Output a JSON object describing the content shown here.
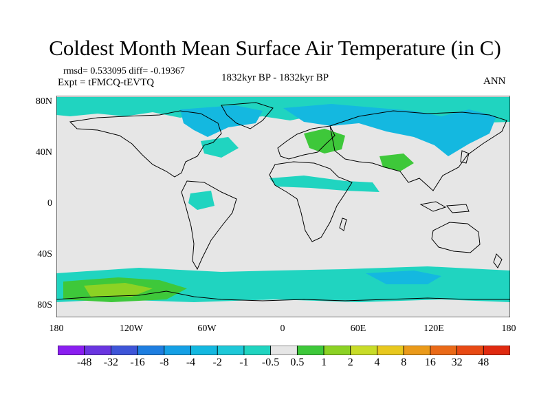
{
  "title": "Coldest Month Mean Surface Air Temperature (in C)",
  "stats": "rmsd= 0.533095 diff= -0.19367",
  "experiment": "Expt = tFMCQ-tEVTQ",
  "period": "1832kyr BP - 1832kyr BP",
  "season": "ANN",
  "lat_labels": [
    "80N",
    "40N",
    "0",
    "40S",
    "80S"
  ],
  "lon_labels": [
    "180",
    "120W",
    "60W",
    "0",
    "60E",
    "120E",
    "180"
  ],
  "colorbar": {
    "labels": [
      "-48",
      "-32",
      "-16",
      "-8",
      "-4",
      "-2",
      "-1",
      "-0.5",
      "0.5",
      "1",
      "2",
      "4",
      "8",
      "16",
      "32",
      "48"
    ],
    "colors": [
      "#8a1ef0",
      "#6a35e0",
      "#3e55d8",
      "#1e7ee0",
      "#15a0e5",
      "#14b8e0",
      "#1ec8d8",
      "#20d4c0",
      "#e6e6e6",
      "#3ec83a",
      "#8cd224",
      "#c8dc28",
      "#e8c81e",
      "#ea9a1a",
      "#ea6a18",
      "#e84a14",
      "#e02a10"
    ]
  },
  "map_colors": {
    "background": "#e6e6e6",
    "cool_light": "#20d4c0",
    "cool": "#14b8e0",
    "warm_light": "#3ec83a",
    "warm": "#8cd224"
  }
}
